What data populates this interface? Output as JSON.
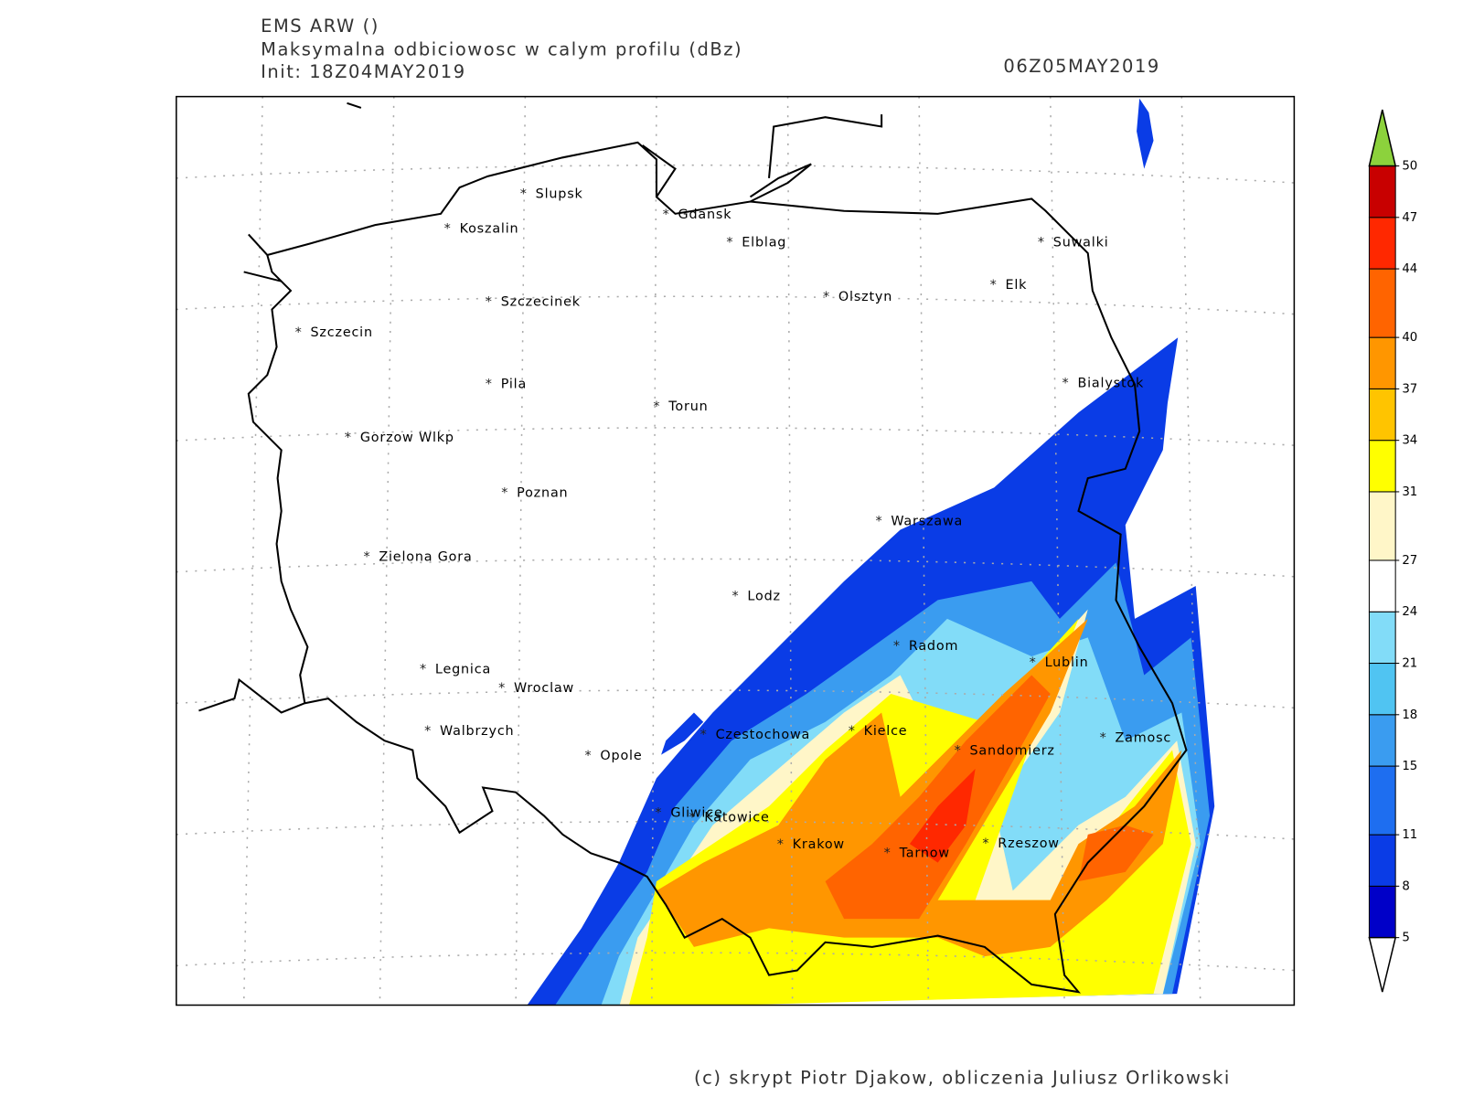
{
  "header": {
    "model": "EMS ARW ()",
    "title": "Maksymalna odbiciowosc w calym profilu (dBz)",
    "init": "Init: 18Z04MAY2019",
    "valid": "06Z05MAY2019"
  },
  "cities": [
    "Slupsk",
    "Koszalin",
    "Gdansk",
    "Elblag",
    "Suwalki",
    "Elk",
    "Olsztyn",
    "Szczecinek",
    "Szczecin",
    "Bialystok",
    "Pila",
    "Torun",
    "Gorzow Wlkp",
    "Poznan",
    "Warszawa",
    "Zielona Gora",
    "Lodz",
    "Radom",
    "Lublin",
    "Legnica",
    "Wroclaw",
    "Walbrzych",
    "Czestochowa",
    "Kielce",
    "Opole",
    "Sandomierz",
    "Zamosc",
    "Gliwice",
    "Katowice",
    "Krakow",
    "Tarnow",
    "Rzeszow"
  ],
  "colorbar": {
    "levels": [
      5,
      8,
      11,
      15,
      18,
      21,
      24,
      27,
      31,
      34,
      37,
      40,
      44,
      47,
      50
    ],
    "colors": [
      "#0000c8",
      "#0a3ce6",
      "#1e6ef0",
      "#3a9cf0",
      "#50c4f2",
      "#82dcf8",
      "#ffffff",
      "#fff6c8",
      "#ffff00",
      "#ffc400",
      "#ff9600",
      "#ff6400",
      "#ff2800",
      "#c80000"
    ],
    "under_color": "#ffffff",
    "over_color": "#8cd23c"
  },
  "footer": "(c) skrypt Piotr Djakow, obliczenia Juliusz Orlikowski"
}
